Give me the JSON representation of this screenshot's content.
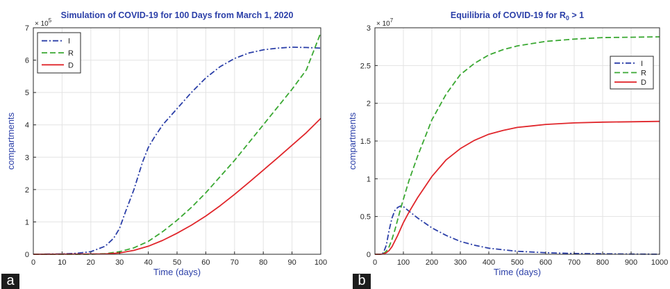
{
  "panel_labels": [
    "a",
    "b"
  ],
  "chart_data": [
    {
      "type": "line",
      "title": "Simulation of COVID-19 for 100 Days from March 1, 2020",
      "xlabel": "Time (days)",
      "ylabel": "compartments",
      "y_multiplier": "× 10",
      "y_multiplier_exp": "5",
      "xlim": [
        0,
        100
      ],
      "ylim": [
        0,
        700000
      ],
      "xticks": [
        0,
        10,
        20,
        30,
        40,
        50,
        60,
        70,
        80,
        90,
        100
      ],
      "yticks": [
        0,
        100000,
        200000,
        300000,
        400000,
        500000,
        600000,
        700000
      ],
      "yticklabels": [
        "0",
        "1",
        "2",
        "3",
        "4",
        "5",
        "6",
        "7"
      ],
      "grid": true,
      "legend": "top-left",
      "series": [
        {
          "name": "I",
          "color": "#2b3fa8",
          "style": "dashdot",
          "x": [
            0,
            10,
            15,
            20,
            25,
            28,
            30,
            32,
            35,
            38,
            40,
            42,
            45,
            50,
            55,
            60,
            65,
            70,
            75,
            80,
            85,
            90,
            95,
            100
          ],
          "y": [
            0,
            1000,
            3000,
            8000,
            25000,
            50000,
            80000,
            130000,
            200000,
            285000,
            330000,
            360000,
            400000,
            450000,
            500000,
            545000,
            580000,
            605000,
            622000,
            632000,
            637000,
            640000,
            639000,
            637000
          ]
        },
        {
          "name": "R",
          "color": "#3aa832",
          "style": "dashed",
          "x": [
            0,
            20,
            25,
            30,
            35,
            40,
            45,
            50,
            55,
            60,
            65,
            70,
            75,
            80,
            85,
            90,
            95,
            100
          ],
          "y": [
            0,
            0,
            2000,
            8000,
            20000,
            40000,
            70000,
            105000,
            145000,
            190000,
            240000,
            290000,
            345000,
            400000,
            455000,
            510000,
            570000,
            685000
          ]
        },
        {
          "name": "D",
          "color": "#e0262b",
          "style": "solid",
          "x": [
            0,
            25,
            30,
            35,
            40,
            45,
            50,
            55,
            60,
            65,
            70,
            75,
            80,
            85,
            90,
            95,
            100
          ],
          "y": [
            0,
            1000,
            4000,
            12000,
            25000,
            43000,
            65000,
            90000,
            118000,
            150000,
            185000,
            222000,
            260000,
            298000,
            337000,
            376000,
            420000
          ]
        }
      ]
    },
    {
      "type": "line",
      "title": "Equilibria of COVID-19 for R",
      "title_subscript": "0",
      "title_suffix": " > 1",
      "xlabel": "Time (days)",
      "ylabel": "compartments",
      "y_multiplier": "× 10",
      "y_multiplier_exp": "7",
      "xlim": [
        0,
        1000
      ],
      "ylim": [
        0,
        30000000
      ],
      "xticks": [
        0,
        100,
        200,
        300,
        400,
        500,
        600,
        700,
        800,
        900,
        1000
      ],
      "yticks": [
        0,
        5000000,
        10000000,
        15000000,
        20000000,
        25000000,
        30000000
      ],
      "yticklabels": [
        "0",
        "0.5",
        "1",
        "1.5",
        "2",
        "2.5",
        "3"
      ],
      "grid": true,
      "legend": "top-right",
      "series": [
        {
          "name": "I",
          "color": "#2b3fa8",
          "style": "dashdot",
          "x": [
            0,
            20,
            30,
            40,
            50,
            60,
            70,
            80,
            90,
            100,
            110,
            130,
            150,
            200,
            250,
            300,
            350,
            400,
            500,
            600,
            700,
            800,
            900,
            1000
          ],
          "y": [
            0,
            0,
            200000,
            1200000,
            3200000,
            4800000,
            5800000,
            6200000,
            6400000,
            6300000,
            6000000,
            5400000,
            4800000,
            3500000,
            2500000,
            1700000,
            1200000,
            800000,
            400000,
            200000,
            100000,
            60000,
            30000,
            10000
          ]
        },
        {
          "name": "R",
          "color": "#3aa832",
          "style": "dashed",
          "x": [
            0,
            20,
            30,
            40,
            50,
            60,
            70,
            80,
            90,
            100,
            120,
            150,
            200,
            250,
            300,
            350,
            400,
            450,
            500,
            600,
            700,
            800,
            900,
            1000
          ],
          "y": [
            0,
            0,
            100000,
            400000,
            1000000,
            2000000,
            3200000,
            4600000,
            6000000,
            7300000,
            9800000,
            13000000,
            17800000,
            21200000,
            23800000,
            25300000,
            26400000,
            27100000,
            27600000,
            28200000,
            28500000,
            28700000,
            28750000,
            28800000
          ]
        },
        {
          "name": "D",
          "color": "#e0262b",
          "style": "solid",
          "x": [
            0,
            20,
            30,
            40,
            50,
            60,
            80,
            100,
            120,
            150,
            200,
            250,
            300,
            350,
            400,
            450,
            500,
            550,
            600,
            700,
            800,
            900,
            1000
          ],
          "y": [
            0,
            0,
            50000,
            200000,
            500000,
            1000000,
            2500000,
            4200000,
            5600000,
            7500000,
            10300000,
            12500000,
            14000000,
            15100000,
            15900000,
            16400000,
            16800000,
            17000000,
            17200000,
            17400000,
            17500000,
            17550000,
            17600000
          ]
        }
      ]
    }
  ]
}
